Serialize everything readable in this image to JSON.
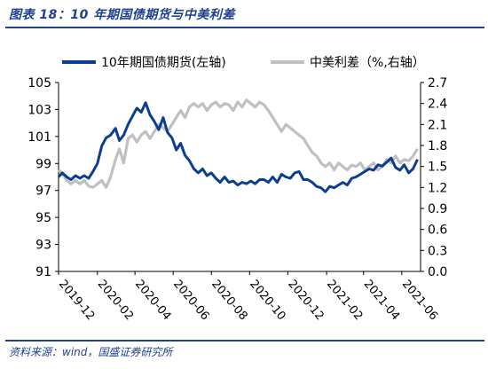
{
  "figure": {
    "title": "图表 18：10 年期国债期货与中美利差",
    "source": "资料来源：wind，国盛证券研究所"
  },
  "colors": {
    "primary": "#0b3d91",
    "secondary": "#c0c0c0",
    "axis": "#000000",
    "accent": "#1f3f8f"
  },
  "chart_data": {
    "type": "line",
    "legend_position": "top",
    "grid": false,
    "x_ticks": [
      "2019-12",
      "2020-02",
      "2020-04",
      "2020-06",
      "2020-08",
      "2020-10",
      "2020-12",
      "2021-02",
      "2021-04",
      "2021-06"
    ],
    "x_range": [
      "2019-12-01",
      "2021-07-01"
    ],
    "y_left": {
      "range": [
        91,
        105
      ],
      "ticks": [
        "91",
        "93",
        "95",
        "97",
        "99",
        "101",
        "103",
        "105"
      ]
    },
    "y_right": {
      "range": [
        0.0,
        2.7
      ],
      "ticks": [
        "0.0",
        "0.3",
        "0.6",
        "0.9",
        "1.2",
        "1.5",
        "1.8",
        "2.1",
        "2.4",
        "2.7"
      ]
    },
    "series": [
      {
        "name": "10年期国债期货(左轴)",
        "axis": "left",
        "color": "#0b3d91",
        "points": [
          [
            "2019-12-01",
            98.0
          ],
          [
            "2019-12-07",
            98.3
          ],
          [
            "2019-12-14",
            98.0
          ],
          [
            "2019-12-21",
            97.8
          ],
          [
            "2019-12-28",
            98.1
          ],
          [
            "2020-01-04",
            97.9
          ],
          [
            "2020-01-11",
            98.1
          ],
          [
            "2020-01-18",
            97.9
          ],
          [
            "2020-01-25",
            98.4
          ],
          [
            "2020-02-01",
            99.0
          ],
          [
            "2020-02-08",
            100.3
          ],
          [
            "2020-02-15",
            100.9
          ],
          [
            "2020-02-22",
            101.1
          ],
          [
            "2020-03-01",
            101.6
          ],
          [
            "2020-03-07",
            100.7
          ],
          [
            "2020-03-14",
            101.1
          ],
          [
            "2020-03-21",
            101.9
          ],
          [
            "2020-03-28",
            102.5
          ],
          [
            "2020-04-04",
            103.1
          ],
          [
            "2020-04-11",
            102.8
          ],
          [
            "2020-04-18",
            103.5
          ],
          [
            "2020-04-25",
            102.6
          ],
          [
            "2020-05-02",
            102.1
          ],
          [
            "2020-05-09",
            101.5
          ],
          [
            "2020-05-16",
            102.4
          ],
          [
            "2020-05-23",
            101.3
          ],
          [
            "2020-05-30",
            100.9
          ],
          [
            "2020-06-06",
            100.0
          ],
          [
            "2020-06-13",
            100.5
          ],
          [
            "2020-06-20",
            99.6
          ],
          [
            "2020-06-27",
            99.2
          ],
          [
            "2020-07-04",
            98.6
          ],
          [
            "2020-07-11",
            98.3
          ],
          [
            "2020-07-18",
            98.6
          ],
          [
            "2020-07-25",
            98.1
          ],
          [
            "2020-08-01",
            98.3
          ],
          [
            "2020-08-08",
            97.9
          ],
          [
            "2020-08-15",
            97.6
          ],
          [
            "2020-08-22",
            98.0
          ],
          [
            "2020-08-29",
            97.6
          ],
          [
            "2020-09-05",
            97.7
          ],
          [
            "2020-09-12",
            97.4
          ],
          [
            "2020-09-19",
            97.6
          ],
          [
            "2020-09-26",
            97.5
          ],
          [
            "2020-10-03",
            97.7
          ],
          [
            "2020-10-10",
            97.5
          ],
          [
            "2020-10-17",
            97.8
          ],
          [
            "2020-10-24",
            97.8
          ],
          [
            "2020-10-31",
            97.6
          ],
          [
            "2020-11-07",
            98.0
          ],
          [
            "2020-11-14",
            97.6
          ],
          [
            "2020-11-21",
            98.2
          ],
          [
            "2020-11-28",
            98.0
          ],
          [
            "2020-12-05",
            97.9
          ],
          [
            "2020-12-12",
            98.3
          ],
          [
            "2020-12-19",
            98.4
          ],
          [
            "2020-12-26",
            97.8
          ],
          [
            "2021-01-02",
            97.8
          ],
          [
            "2021-01-09",
            97.6
          ],
          [
            "2021-01-16",
            97.3
          ],
          [
            "2021-01-23",
            97.2
          ],
          [
            "2021-01-30",
            96.9
          ],
          [
            "2021-02-06",
            97.3
          ],
          [
            "2021-02-13",
            97.2
          ],
          [
            "2021-02-20",
            97.4
          ],
          [
            "2021-02-27",
            97.6
          ],
          [
            "2021-03-06",
            97.4
          ],
          [
            "2021-03-13",
            97.9
          ],
          [
            "2021-03-20",
            98.0
          ],
          [
            "2021-03-27",
            98.2
          ],
          [
            "2021-04-03",
            98.4
          ],
          [
            "2021-04-10",
            98.6
          ],
          [
            "2021-04-17",
            98.5
          ],
          [
            "2021-04-24",
            98.9
          ],
          [
            "2021-05-01",
            98.8
          ],
          [
            "2021-05-08",
            99.1
          ],
          [
            "2021-05-15",
            99.4
          ],
          [
            "2021-05-22",
            98.7
          ],
          [
            "2021-05-29",
            98.5
          ],
          [
            "2021-06-05",
            98.9
          ],
          [
            "2021-06-12",
            98.3
          ],
          [
            "2021-06-19",
            98.6
          ],
          [
            "2021-06-26",
            99.3
          ]
        ]
      },
      {
        "name": "中美利差（%,右轴）",
        "axis": "right",
        "color": "#c0c0c0",
        "points": [
          [
            "2019-12-01",
            1.45
          ],
          [
            "2019-12-07",
            1.4
          ],
          [
            "2019-12-14",
            1.3
          ],
          [
            "2019-12-21",
            1.25
          ],
          [
            "2019-12-28",
            1.3
          ],
          [
            "2020-01-04",
            1.25
          ],
          [
            "2020-01-11",
            1.3
          ],
          [
            "2020-01-18",
            1.22
          ],
          [
            "2020-01-25",
            1.2
          ],
          [
            "2020-02-01",
            1.25
          ],
          [
            "2020-02-08",
            1.3
          ],
          [
            "2020-02-15",
            1.2
          ],
          [
            "2020-02-22",
            1.35
          ],
          [
            "2020-03-01",
            1.6
          ],
          [
            "2020-03-07",
            1.75
          ],
          [
            "2020-03-14",
            1.55
          ],
          [
            "2020-03-21",
            1.9
          ],
          [
            "2020-03-28",
            1.95
          ],
          [
            "2020-04-04",
            1.85
          ],
          [
            "2020-04-11",
            1.95
          ],
          [
            "2020-04-18",
            2.0
          ],
          [
            "2020-04-25",
            1.9
          ],
          [
            "2020-05-02",
            2.0
          ],
          [
            "2020-05-09",
            2.1
          ],
          [
            "2020-05-16",
            2.05
          ],
          [
            "2020-05-23",
            2.0
          ],
          [
            "2020-05-30",
            2.1
          ],
          [
            "2020-06-06",
            2.2
          ],
          [
            "2020-06-13",
            2.3
          ],
          [
            "2020-06-20",
            2.2
          ],
          [
            "2020-06-27",
            2.35
          ],
          [
            "2020-07-04",
            2.4
          ],
          [
            "2020-07-11",
            2.35
          ],
          [
            "2020-07-18",
            2.4
          ],
          [
            "2020-07-25",
            2.3
          ],
          [
            "2020-08-01",
            2.38
          ],
          [
            "2020-08-08",
            2.42
          ],
          [
            "2020-08-15",
            2.35
          ],
          [
            "2020-08-22",
            2.4
          ],
          [
            "2020-08-29",
            2.38
          ],
          [
            "2020-09-05",
            2.3
          ],
          [
            "2020-09-12",
            2.42
          ],
          [
            "2020-09-19",
            2.35
          ],
          [
            "2020-09-26",
            2.45
          ],
          [
            "2020-10-03",
            2.4
          ],
          [
            "2020-10-10",
            2.35
          ],
          [
            "2020-10-17",
            2.42
          ],
          [
            "2020-10-24",
            2.38
          ],
          [
            "2020-10-31",
            2.3
          ],
          [
            "2020-11-07",
            2.2
          ],
          [
            "2020-11-14",
            2.1
          ],
          [
            "2020-11-21",
            2.0
          ],
          [
            "2020-11-28",
            2.1
          ],
          [
            "2020-12-05",
            2.05
          ],
          [
            "2020-12-12",
            2.0
          ],
          [
            "2020-12-19",
            1.95
          ],
          [
            "2020-12-26",
            1.9
          ],
          [
            "2021-01-02",
            1.8
          ],
          [
            "2021-01-09",
            1.7
          ],
          [
            "2021-01-16",
            1.65
          ],
          [
            "2021-01-23",
            1.55
          ],
          [
            "2021-01-30",
            1.5
          ],
          [
            "2021-02-06",
            1.55
          ],
          [
            "2021-02-13",
            1.45
          ],
          [
            "2021-02-20",
            1.55
          ],
          [
            "2021-02-27",
            1.5
          ],
          [
            "2021-03-06",
            1.45
          ],
          [
            "2021-03-13",
            1.52
          ],
          [
            "2021-03-20",
            1.5
          ],
          [
            "2021-03-27",
            1.55
          ],
          [
            "2021-04-03",
            1.45
          ],
          [
            "2021-04-10",
            1.5
          ],
          [
            "2021-04-17",
            1.55
          ],
          [
            "2021-04-24",
            1.45
          ],
          [
            "2021-05-01",
            1.5
          ],
          [
            "2021-05-08",
            1.6
          ],
          [
            "2021-05-15",
            1.55
          ],
          [
            "2021-05-22",
            1.65
          ],
          [
            "2021-05-29",
            1.55
          ],
          [
            "2021-06-05",
            1.6
          ],
          [
            "2021-06-12",
            1.58
          ],
          [
            "2021-06-19",
            1.65
          ],
          [
            "2021-06-26",
            1.75
          ]
        ]
      }
    ]
  }
}
